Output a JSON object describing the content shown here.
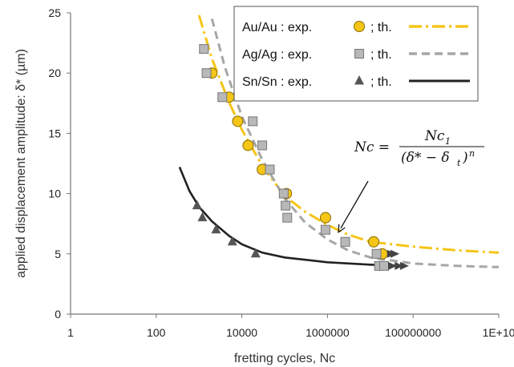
{
  "chart_data": {
    "type": "scatter",
    "title": "",
    "xlabel": "fretting cycles, Nc",
    "ylabel": "applied displacement amplitude: δ* (µm)",
    "xscale": "log",
    "xlim": [
      1,
      10000000000
    ],
    "ylim": [
      0,
      25
    ],
    "x_ticks": [
      {
        "value": 1,
        "label": "1"
      },
      {
        "value": 100,
        "label": "100"
      },
      {
        "value": 10000,
        "label": "10000"
      },
      {
        "value": 1000000,
        "label": "1000000"
      },
      {
        "value": 100000000,
        "label": "100000000"
      },
      {
        "value": 10000000000,
        "label": "1E+10"
      }
    ],
    "y_ticks": [
      {
        "value": 0,
        "label": "0"
      },
      {
        "value": 5,
        "label": "5"
      },
      {
        "value": 10,
        "label": "10"
      },
      {
        "value": 15,
        "label": "15"
      },
      {
        "value": 20,
        "label": "20"
      },
      {
        "value": 25,
        "label": "25"
      }
    ],
    "grid": false,
    "legend_position": "top-right",
    "series": [
      {
        "name": "Au/Au : exp.",
        "kind": "points",
        "marker": "circle",
        "color": "#F5C518",
        "points": [
          [
            2000,
            20
          ],
          [
            5000,
            18
          ],
          [
            8000,
            16
          ],
          [
            14000,
            14
          ],
          [
            30000,
            12
          ],
          [
            110000,
            10
          ],
          [
            900000,
            8
          ],
          [
            12000000,
            6
          ],
          [
            19000000,
            5
          ]
        ]
      },
      {
        "name": "Ag/Ag : exp.",
        "kind": "points",
        "marker": "square",
        "color": "#B8B8B8",
        "points": [
          [
            1300,
            22
          ],
          [
            1500,
            20
          ],
          [
            3500,
            18
          ],
          [
            18000,
            16
          ],
          [
            30000,
            14
          ],
          [
            45000,
            12
          ],
          [
            95000,
            10
          ],
          [
            105000,
            9
          ],
          [
            115000,
            8
          ],
          [
            900000,
            7
          ],
          [
            2600000,
            6
          ],
          [
            14000000,
            5
          ],
          [
            16000000,
            4
          ],
          [
            21000000,
            4
          ]
        ]
      },
      {
        "name": "Sn/Sn : exp.",
        "kind": "points",
        "marker": "triangle",
        "color": "#555555",
        "points": [
          [
            900,
            9
          ],
          [
            1200,
            8
          ],
          [
            2500,
            7
          ],
          [
            6000,
            6
          ],
          [
            21000,
            5
          ]
        ]
      },
      {
        "name": "Au/Au : th.",
        "kind": "curve",
        "style": "dash-dot",
        "color": "#F5C518",
        "points": [
          [
            1000,
            24.8
          ],
          [
            2000,
            21.2
          ],
          [
            5000,
            17.6
          ],
          [
            10000,
            15.3
          ],
          [
            30000,
            12.3
          ],
          [
            100000,
            9.8
          ],
          [
            300000,
            8.5
          ],
          [
            1000000,
            7.4
          ],
          [
            3000000,
            6.6
          ],
          [
            10000000,
            6.0
          ],
          [
            100000000,
            5.6
          ],
          [
            1000000000,
            5.3
          ],
          [
            10000000000,
            5.1
          ]
        ]
      },
      {
        "name": "Ag/Ag : th.",
        "kind": "curve",
        "style": "dashed",
        "color": "#A6A6A6",
        "points": [
          [
            2000,
            24.5
          ],
          [
            4000,
            20.5
          ],
          [
            10000,
            16.4
          ],
          [
            30000,
            12.8
          ],
          [
            100000,
            9.6
          ],
          [
            300000,
            7.6
          ],
          [
            1000000,
            6.2
          ],
          [
            3000000,
            5.3
          ],
          [
            10000000,
            4.7
          ],
          [
            100000000,
            4.2
          ],
          [
            1000000000,
            4.0
          ],
          [
            10000000000,
            3.9
          ]
        ]
      },
      {
        "name": "Sn/Sn : th.",
        "kind": "curve",
        "style": "solid",
        "color": "#222222",
        "points": [
          [
            350,
            12.2
          ],
          [
            600,
            10.2
          ],
          [
            1000,
            8.9
          ],
          [
            2000,
            7.7
          ],
          [
            5000,
            6.5
          ],
          [
            10000,
            5.8
          ],
          [
            30000,
            5.1
          ],
          [
            100000,
            4.7
          ],
          [
            1000000,
            4.3
          ],
          [
            10000000,
            4.1
          ],
          [
            60000000,
            4.0
          ]
        ]
      }
    ],
    "arrows": [
      {
        "color": "#444444",
        "x": 21000000,
        "y": 4
      },
      {
        "color": "#444444",
        "x": 30000000,
        "y": 4
      },
      {
        "color": "#444444",
        "x": 40000000,
        "y": 4
      },
      {
        "color": "#444444",
        "x": 20000000,
        "y": 5
      },
      {
        "color": "#444444",
        "x": 24000000,
        "y": 5
      }
    ],
    "legend": [
      {
        "label": "Au/Au : exp.",
        "marker": "circle",
        "marker_color": "#F5C518",
        "th_label": "; th.",
        "line_style": "dash-dot",
        "line_color": "#F5C518"
      },
      {
        "label": "Ag/Ag : exp.",
        "marker": "square",
        "marker_color": "#B8B8B8",
        "th_label": "; th.",
        "line_style": "dashed",
        "line_color": "#A6A6A6"
      },
      {
        "label": "Sn/Sn : exp.",
        "marker": "triangle",
        "marker_color": "#555555",
        "th_label": "; th.",
        "line_style": "solid",
        "line_color": "#222222"
      }
    ],
    "annotation": {
      "equation_lhs": "Nc =",
      "numerator": "Nc",
      "numerator_sub": "1",
      "denominator": "(δ* − δ",
      "denominator_sub": "t",
      "denominator_tail": ")",
      "exponent": "n",
      "points_to": {
        "x": 1800000,
        "y": 6.8
      }
    }
  }
}
